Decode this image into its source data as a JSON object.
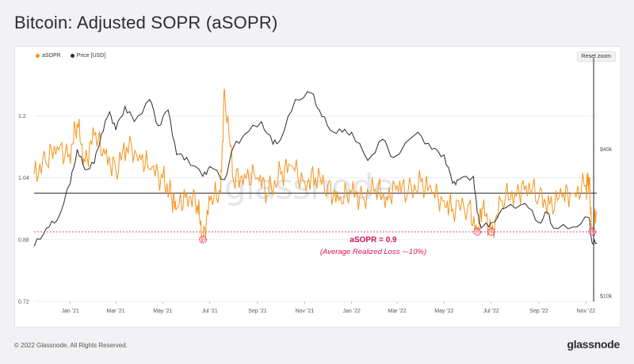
{
  "title": "Bitcoin: Adjusted SOPR (aSOPR)",
  "reset_zoom": "Reset zoom",
  "legend": [
    {
      "label": "aSOPR",
      "color": "#f7931a"
    },
    {
      "label": "Price [USD]",
      "color": "#2b2b2b"
    }
  ],
  "watermark": "glassnode",
  "footer": {
    "copyright": "© 2022 Glassnode. All Rights Reserved.",
    "brand": "glassnode"
  },
  "colors": {
    "asopr": "#f7931a",
    "price": "#2b2b2b",
    "annotation": "#d3125c"
  },
  "chart_data": {
    "type": "line",
    "title": "Bitcoin: Adjusted SOPR (aSOPR)",
    "x_tick_labels": [
      "Jan '21",
      "Mar '21",
      "May '21",
      "Jul '21",
      "Sep '21",
      "Nov '21",
      "Jan '22",
      "Mar '22",
      "May '22",
      "Jul '22",
      "Sep '22",
      "Nov '22"
    ],
    "x_range": [
      "2020-11-15",
      "2022-11-15"
    ],
    "y_left": {
      "label": "aSOPR",
      "ticks": [
        0.72,
        0.88,
        1.04,
        1.2
      ],
      "tick_labels": [
        "0.72",
        "0.88",
        "1.04",
        "1.2"
      ],
      "range": [
        0.72,
        1.35
      ]
    },
    "y_right": {
      "label": "Price [USD]",
      "scale": "log",
      "ticks": [
        10000,
        40000
      ],
      "tick_labels": [
        "$10k",
        "$40k"
      ],
      "range": [
        9500,
        95000
      ]
    },
    "reference_lines": [
      {
        "axis": "left",
        "value": 1.0,
        "style": "solid"
      },
      {
        "axis": "left",
        "value": 0.9,
        "style": "dashed"
      }
    ],
    "annotation": {
      "title": "aSOPR = 0.9",
      "subtitle": "(Average Realized Loss ~-10%)"
    },
    "highlight_points": [
      {
        "date": "2021-06-22",
        "value": 0.88
      },
      {
        "date": "2022-06-13",
        "value": 0.9
      },
      {
        "date": "2022-07-01",
        "value": 0.9
      },
      {
        "date": "2022-11-09",
        "value": 0.9
      }
    ],
    "series": [
      {
        "name": "aSOPR",
        "color": "#f7931a",
        "dates": [
          "2020-11-15",
          "2020-11-30",
          "2020-12-15",
          "2020-12-31",
          "2021-01-10",
          "2021-01-20",
          "2021-02-01",
          "2021-02-15",
          "2021-03-01",
          "2021-03-15",
          "2021-04-01",
          "2021-04-15",
          "2021-05-01",
          "2021-05-12",
          "2021-05-19",
          "2021-06-01",
          "2021-06-15",
          "2021-06-22",
          "2021-07-01",
          "2021-07-15",
          "2021-07-20",
          "2021-08-01",
          "2021-08-15",
          "2021-09-01",
          "2021-09-15",
          "2021-10-01",
          "2021-10-15",
          "2021-11-01",
          "2021-11-15",
          "2021-12-01",
          "2021-12-15",
          "2022-01-01",
          "2022-01-15",
          "2022-02-01",
          "2022-02-15",
          "2022-03-01",
          "2022-03-15",
          "2022-04-01",
          "2022-04-15",
          "2022-05-01",
          "2022-05-12",
          "2022-06-01",
          "2022-06-13",
          "2022-06-20",
          "2022-07-01",
          "2022-07-15",
          "2022-08-01",
          "2022-08-15",
          "2022-09-01",
          "2022-09-15",
          "2022-10-01",
          "2022-10-15",
          "2022-11-01",
          "2022-11-05",
          "2022-11-09",
          "2022-11-15"
        ],
        "values": [
          1.05,
          1.08,
          1.12,
          1.1,
          1.18,
          1.08,
          1.15,
          1.1,
          1.06,
          1.12,
          1.1,
          1.06,
          1.04,
          0.99,
          0.96,
          1.0,
          0.97,
          0.88,
          0.98,
          1.0,
          1.27,
          1.03,
          1.05,
          1.04,
          1.0,
          1.05,
          1.07,
          1.03,
          1.04,
          1.02,
          0.98,
          1.0,
          0.99,
          1.01,
          0.99,
          1.02,
          1.0,
          1.03,
          1.0,
          0.98,
          0.96,
          0.97,
          0.9,
          0.96,
          0.9,
          0.98,
          1.0,
          1.02,
          0.99,
          0.97,
          0.99,
          1.0,
          1.02,
          1.04,
          0.9,
          0.95
        ]
      },
      {
        "name": "Price [USD]",
        "color": "#2b2b2b",
        "dates": [
          "2020-11-15",
          "2020-12-01",
          "2020-12-15",
          "2021-01-01",
          "2021-01-10",
          "2021-01-20",
          "2021-02-01",
          "2021-02-10",
          "2021-02-21",
          "2021-03-01",
          "2021-03-13",
          "2021-03-25",
          "2021-04-14",
          "2021-04-25",
          "2021-05-08",
          "2021-05-19",
          "2021-06-01",
          "2021-06-22",
          "2021-07-01",
          "2021-07-20",
          "2021-08-01",
          "2021-08-15",
          "2021-09-06",
          "2021-09-21",
          "2021-10-01",
          "2021-10-20",
          "2021-11-10",
          "2021-11-20",
          "2021-12-04",
          "2021-12-20",
          "2022-01-01",
          "2022-01-22",
          "2022-02-10",
          "2022-02-24",
          "2022-03-28",
          "2022-04-15",
          "2022-05-01",
          "2022-05-12",
          "2022-05-20",
          "2022-06-08",
          "2022-06-13",
          "2022-06-18",
          "2022-07-01",
          "2022-07-20",
          "2022-08-14",
          "2022-09-01",
          "2022-09-12",
          "2022-09-20",
          "2022-10-15",
          "2022-11-05",
          "2022-11-09",
          "2022-11-15"
        ],
        "values": [
          16000,
          19000,
          20500,
          29000,
          40000,
          33000,
          35000,
          46000,
          57000,
          48000,
          60000,
          52000,
          64000,
          50000,
          58000,
          38000,
          37000,
          31000,
          34000,
          30000,
          41000,
          46000,
          52000,
          42000,
          44000,
          64000,
          68000,
          58000,
          48000,
          47000,
          47000,
          36000,
          44000,
          37000,
          47000,
          40000,
          38000,
          29000,
          30000,
          31000,
          22000,
          19000,
          20000,
          23000,
          24000,
          20000,
          22000,
          19000,
          19200,
          21000,
          16500,
          16500
        ]
      }
    ]
  }
}
